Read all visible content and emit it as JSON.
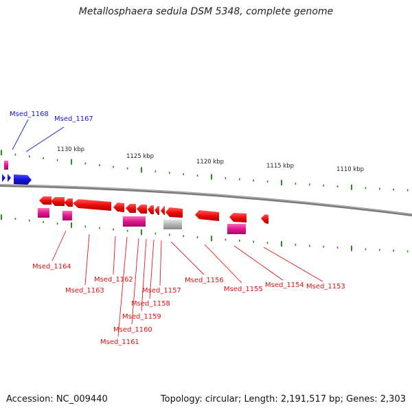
{
  "title": "Metallosphaera sedula DSM 5348, complete genome",
  "footer": {
    "accession": "Accession: NC_009440",
    "stats": "Topology: circular; Length: 2,191,517 bp; Genes: 2,303"
  },
  "colors": {
    "forward_gene": "#1414dc",
    "reverse_gene": "#ee1111",
    "rna": "#e0168c",
    "pseudogene": "#b4b4b4",
    "backbone": "#7a7a7a",
    "ticks": "#2a8a1e"
  },
  "scale_labels": [
    "1130 kbp",
    "1125 kbp",
    "1120 kbp",
    "1115 kbp",
    "1110 kbp"
  ],
  "gene_labels": {
    "forward": [
      "Msed_1168",
      "Msed_1167"
    ],
    "reverse": [
      "Msed_1164",
      "Msed_1163",
      "Msed_1162",
      "Msed_1161",
      "Msed_1160",
      "Msed_1159",
      "Msed_1158",
      "Msed_1157",
      "Msed_1156",
      "Msed_1155",
      "Msed_1154",
      "Msed_1153"
    ]
  }
}
